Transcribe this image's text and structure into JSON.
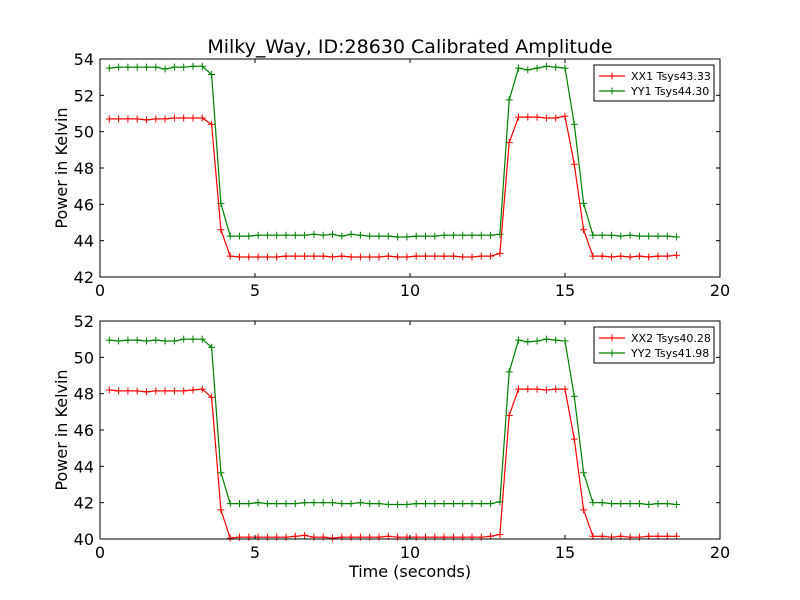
{
  "chart_data": [
    {
      "type": "line",
      "title": "Milky_Way, ID:28630 Calibrated Amplitude",
      "xlabel": "",
      "ylabel": "Power in Kelvin",
      "xlim": [
        0,
        20
      ],
      "ylim": [
        42,
        54
      ],
      "xticks": [
        "0",
        "5",
        "10",
        "15",
        "20"
      ],
      "yticks": [
        "42",
        "44",
        "46",
        "48",
        "50",
        "52",
        "54"
      ],
      "legend_position": "top-right",
      "x": [
        0.3,
        0.6,
        0.9,
        1.2,
        1.5,
        1.8,
        2.1,
        2.4,
        2.7,
        3.0,
        3.3,
        3.6,
        3.9,
        4.2,
        4.5,
        4.8,
        5.1,
        5.4,
        5.7,
        6.0,
        6.3,
        6.6,
        6.9,
        7.2,
        7.5,
        7.8,
        8.1,
        8.4,
        8.7,
        9.0,
        9.3,
        9.6,
        9.9,
        10.2,
        10.5,
        10.8,
        11.1,
        11.4,
        11.7,
        12.0,
        12.3,
        12.6,
        12.9,
        13.2,
        13.5,
        13.8,
        14.1,
        14.4,
        14.7,
        15.0,
        15.3,
        15.6,
        15.9,
        16.2,
        16.5,
        16.8,
        17.1,
        17.4,
        17.7,
        18.0,
        18.3,
        18.6
      ],
      "series": [
        {
          "name": "XX1 Tsys43.33",
          "color": "#ff0000",
          "values": [
            50.7,
            50.7,
            50.7,
            50.7,
            50.65,
            50.7,
            50.7,
            50.75,
            50.75,
            50.75,
            50.75,
            50.4,
            44.6,
            43.15,
            43.1,
            43.1,
            43.1,
            43.1,
            43.1,
            43.15,
            43.15,
            43.15,
            43.15,
            43.15,
            43.1,
            43.15,
            43.1,
            43.1,
            43.1,
            43.1,
            43.15,
            43.1,
            43.1,
            43.15,
            43.15,
            43.15,
            43.15,
            43.15,
            43.1,
            43.1,
            43.15,
            43.15,
            43.3,
            49.4,
            50.8,
            50.8,
            50.8,
            50.75,
            50.75,
            50.85,
            48.2,
            44.6,
            43.15,
            43.15,
            43.1,
            43.15,
            43.1,
            43.15,
            43.1,
            43.15,
            43.15,
            43.2
          ]
        },
        {
          "name": "YY1 Tsys44.30",
          "color": "#008000",
          "values": [
            53.5,
            53.55,
            53.55,
            53.55,
            53.55,
            53.55,
            53.45,
            53.55,
            53.55,
            53.6,
            53.6,
            53.15,
            46.05,
            44.25,
            44.25,
            44.25,
            44.3,
            44.3,
            44.3,
            44.3,
            44.3,
            44.3,
            44.35,
            44.3,
            44.35,
            44.25,
            44.35,
            44.3,
            44.25,
            44.25,
            44.25,
            44.2,
            44.2,
            44.25,
            44.25,
            44.25,
            44.3,
            44.3,
            44.3,
            44.3,
            44.3,
            44.3,
            44.35,
            51.75,
            53.5,
            53.4,
            53.5,
            53.6,
            53.55,
            53.5,
            50.4,
            46.05,
            44.3,
            44.3,
            44.3,
            44.25,
            44.3,
            44.25,
            44.25,
            44.25,
            44.25,
            44.2
          ]
        }
      ]
    },
    {
      "type": "line",
      "title": "",
      "xlabel": "Time (seconds)",
      "ylabel": "Power in Kelvin",
      "xlim": [
        0,
        20
      ],
      "ylim": [
        40,
        52
      ],
      "xticks": [
        "0",
        "5",
        "10",
        "15",
        "20"
      ],
      "yticks": [
        "40",
        "42",
        "44",
        "46",
        "48",
        "50",
        "52"
      ],
      "legend_position": "top-right",
      "x": [
        0.3,
        0.6,
        0.9,
        1.2,
        1.5,
        1.8,
        2.1,
        2.4,
        2.7,
        3.0,
        3.3,
        3.6,
        3.9,
        4.2,
        4.5,
        4.8,
        5.1,
        5.4,
        5.7,
        6.0,
        6.3,
        6.6,
        6.9,
        7.2,
        7.5,
        7.8,
        8.1,
        8.4,
        8.7,
        9.0,
        9.3,
        9.6,
        9.9,
        10.2,
        10.5,
        10.8,
        11.1,
        11.4,
        11.7,
        12.0,
        12.3,
        12.6,
        12.9,
        13.2,
        13.5,
        13.8,
        14.1,
        14.4,
        14.7,
        15.0,
        15.3,
        15.6,
        15.9,
        16.2,
        16.5,
        16.8,
        17.1,
        17.4,
        17.7,
        18.0,
        18.3,
        18.6
      ],
      "series": [
        {
          "name": "XX2 Tsys40.28",
          "color": "#ff0000",
          "values": [
            48.2,
            48.15,
            48.15,
            48.15,
            48.1,
            48.15,
            48.15,
            48.15,
            48.15,
            48.2,
            48.25,
            47.8,
            41.6,
            40.05,
            40.1,
            40.1,
            40.1,
            40.1,
            40.1,
            40.1,
            40.15,
            40.2,
            40.1,
            40.1,
            40.05,
            40.1,
            40.1,
            40.1,
            40.1,
            40.1,
            40.15,
            40.1,
            40.1,
            40.1,
            40.1,
            40.1,
            40.1,
            40.1,
            40.1,
            40.1,
            40.1,
            40.15,
            40.25,
            46.8,
            48.25,
            48.25,
            48.25,
            48.2,
            48.25,
            48.25,
            45.5,
            41.6,
            40.15,
            40.15,
            40.1,
            40.15,
            40.1,
            40.1,
            40.15,
            40.15,
            40.15,
            40.15
          ]
        },
        {
          "name": "YY2 Tsys41.98",
          "color": "#008000",
          "values": [
            50.95,
            50.9,
            50.95,
            50.95,
            50.9,
            50.95,
            50.9,
            50.9,
            51.0,
            51.0,
            51.0,
            50.55,
            43.65,
            41.95,
            41.95,
            41.95,
            42.0,
            41.95,
            41.95,
            41.95,
            41.95,
            42.0,
            42.0,
            42.0,
            42.0,
            41.95,
            41.95,
            42.0,
            41.95,
            41.95,
            41.9,
            41.9,
            41.9,
            41.95,
            41.95,
            41.95,
            41.95,
            41.95,
            41.95,
            41.95,
            41.95,
            41.95,
            42.05,
            49.2,
            50.95,
            50.85,
            50.9,
            51.0,
            50.95,
            50.9,
            47.85,
            43.65,
            42.0,
            42.0,
            41.95,
            41.95,
            41.95,
            41.95,
            41.9,
            41.95,
            41.95,
            41.9
          ]
        }
      ]
    }
  ]
}
